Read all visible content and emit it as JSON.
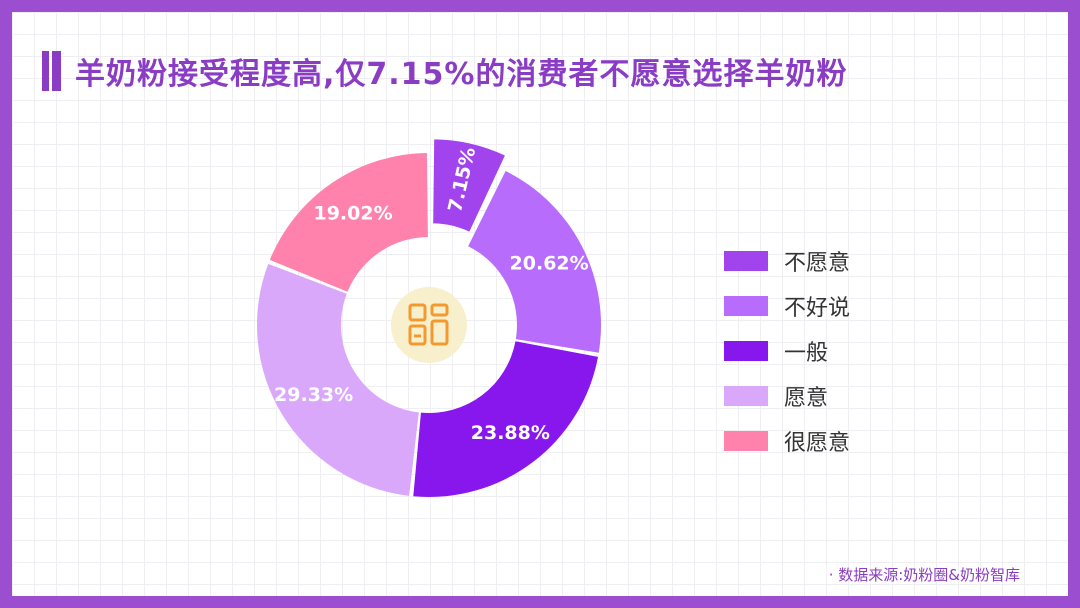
{
  "title": "羊奶粉接受程度高,仅7.15%的消费者不愿意选择羊奶粉",
  "source": "· 数据来源:奶粉圈&奶粉智库",
  "chart_data": {
    "type": "pie",
    "title": "羊奶粉接受程度高,仅7.15%的消费者不愿意选择羊奶粉",
    "legend_position": "right",
    "center_icon": "grid-icon",
    "categories": [
      "不愿意",
      "不好说",
      "一般",
      "愿意",
      "很愿意"
    ],
    "values": [
      7.15,
      20.62,
      23.88,
      29.33,
      19.02
    ],
    "labels": [
      "7.15%",
      "20.62%",
      "23.88%",
      "29.33%",
      "19.02%"
    ],
    "colors": [
      "#a144ee",
      "#b76cfb",
      "#8717ec",
      "#d9a8fb",
      "#ff82ad"
    ],
    "exploded": [
      "不愿意"
    ]
  }
}
